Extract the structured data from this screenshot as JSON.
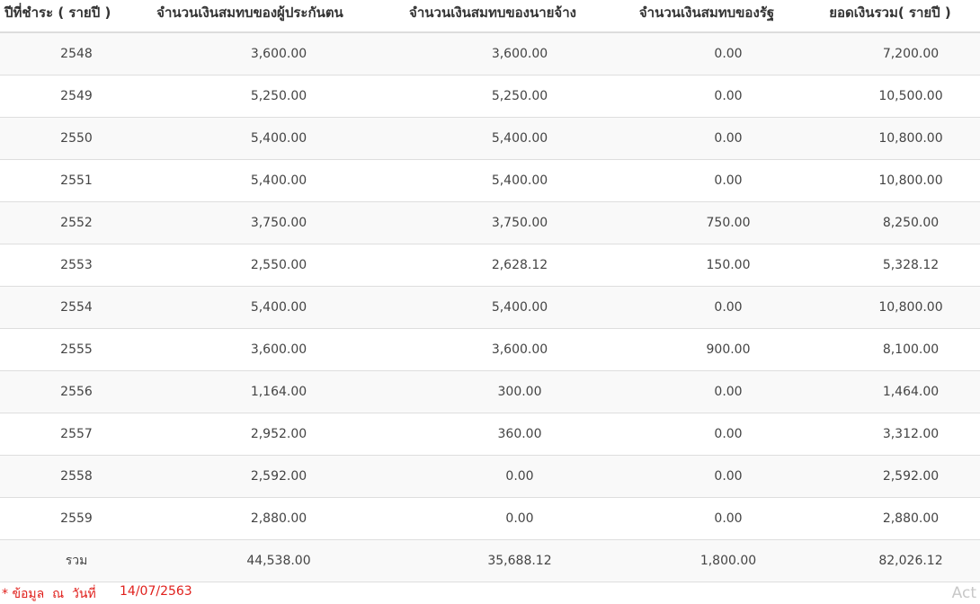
{
  "table": {
    "headers": [
      "ปีที่ชำระ ( รายปี )",
      "จำนวนเงินสมทบของผู้ประกันตน",
      "จำนวนเงินสมทบของนายจ้าง",
      "จำนวนเงินสมทบของรัฐ",
      "ยอดเงินรวม( รายปี )"
    ],
    "rows": [
      [
        "2548",
        "3,600.00",
        "3,600.00",
        "0.00",
        "7,200.00"
      ],
      [
        "2549",
        "5,250.00",
        "5,250.00",
        "0.00",
        "10,500.00"
      ],
      [
        "2550",
        "5,400.00",
        "5,400.00",
        "0.00",
        "10,800.00"
      ],
      [
        "2551",
        "5,400.00",
        "5,400.00",
        "0.00",
        "10,800.00"
      ],
      [
        "2552",
        "3,750.00",
        "3,750.00",
        "750.00",
        "8,250.00"
      ],
      [
        "2553",
        "2,550.00",
        "2,628.12",
        "150.00",
        "5,328.12"
      ],
      [
        "2554",
        "5,400.00",
        "5,400.00",
        "0.00",
        "10,800.00"
      ],
      [
        "2555",
        "3,600.00",
        "3,600.00",
        "900.00",
        "8,100.00"
      ],
      [
        "2556",
        "1,164.00",
        "300.00",
        "0.00",
        "1,464.00"
      ],
      [
        "2557",
        "2,952.00",
        "360.00",
        "0.00",
        "3,312.00"
      ],
      [
        "2558",
        "2,592.00",
        "0.00",
        "0.00",
        "2,592.00"
      ],
      [
        "2559",
        "2,880.00",
        "0.00",
        "0.00",
        "2,880.00"
      ],
      [
        "รวม",
        "44,538.00",
        "35,688.12",
        "1,800.00",
        "82,026.12"
      ]
    ]
  },
  "footer": {
    "note": "* ข้อมูล  ณ  วันที่",
    "date": "14/07/2563"
  },
  "watermark": "Act"
}
